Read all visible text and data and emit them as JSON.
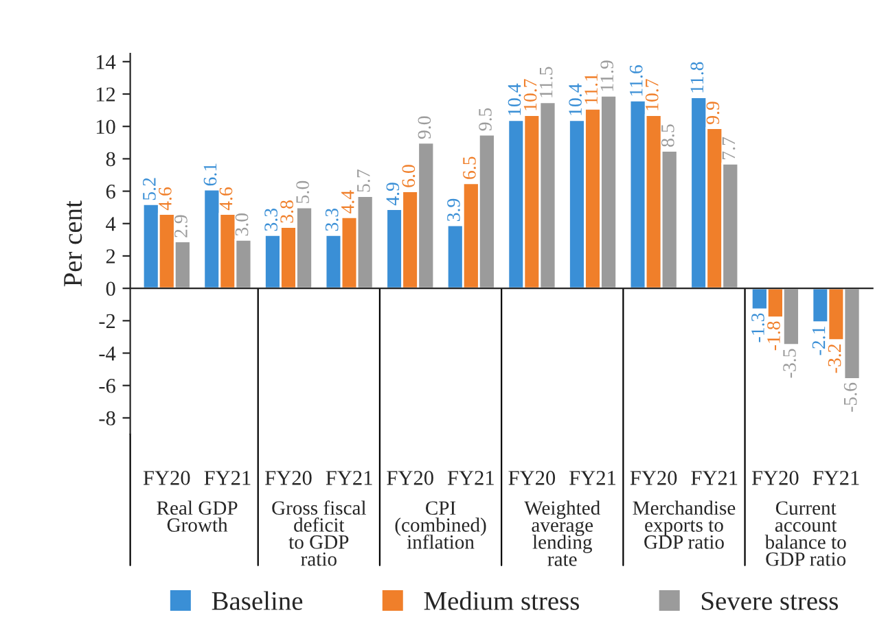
{
  "chart_data": {
    "type": "bar",
    "categories": [
      "FY20",
      "FY21",
      "FY20",
      "FY21",
      "FY20",
      "FY21",
      "FY20",
      "FY21",
      "FY20",
      "FY21",
      "FY20",
      "FY21"
    ],
    "series": [
      {
        "name": "Baseline",
        "color": "#3a8fd6",
        "values": [
          5.2,
          6.1,
          3.3,
          3.3,
          4.9,
          3.9,
          10.4,
          10.4,
          11.6,
          11.8,
          -1.3,
          -2.1
        ],
        "value_labels": [
          "5.2",
          "6.1",
          "3.3",
          "3.3",
          "4.9",
          "3.9",
          "10.4",
          "10.4",
          "11.6",
          "11.8",
          "-1.3",
          "-2.1"
        ]
      },
      {
        "name": "Medium stress",
        "color": "#f07f2a",
        "values": [
          4.6,
          4.6,
          3.8,
          4.4,
          6.0,
          6.5,
          10.7,
          11.1,
          10.7,
          9.9,
          -1.8,
          -3.2
        ],
        "value_labels": [
          "4.6",
          "4.6",
          "3.8",
          "4.4",
          "6.0",
          "6.5",
          "10.7",
          "11.1",
          "10.7",
          "9.9",
          "-1.8",
          "-3.2"
        ]
      },
      {
        "name": "Severe stress",
        "color": "#9b9b9b",
        "values": [
          2.9,
          3.0,
          5.0,
          5.7,
          9.0,
          9.5,
          11.5,
          11.9,
          8.5,
          7.7,
          -3.5,
          -5.6
        ],
        "value_labels": [
          "2.9",
          "3.0",
          "5.0",
          "5.7",
          "9.0",
          "9.5",
          "11.5",
          "11.9",
          "8.5",
          "7.7",
          "-3.5",
          "-5.6"
        ]
      }
    ],
    "annotations": [
      "Real GDP\nGrowth",
      "Gross fiscal\ndeficit\nto GDP\nratio",
      "CPI\n(combined)\ninflation",
      "Weighted\naverage\nlending\nrate",
      "Merchandise\nexports to\nGDP ratio",
      "Current\naccount\nbalance to\nGDP ratio"
    ],
    "ylabel": "Per cent",
    "ylim": [
      -9,
      14.5
    ],
    "yticks": [
      -8,
      -6,
      -4,
      -2,
      0,
      2,
      4,
      6,
      8,
      10,
      12,
      14
    ],
    "grid": false,
    "legend": "bottom"
  }
}
